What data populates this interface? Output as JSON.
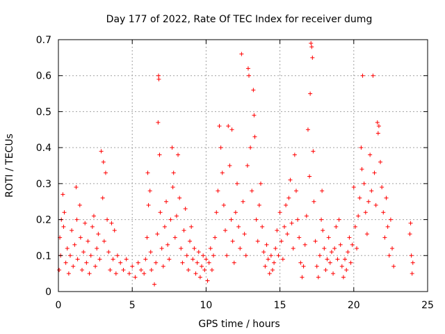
{
  "chart_data": {
    "type": "scatter",
    "title": "Day 177 of 2022, Rate Of TEC Index for receiver dumg",
    "xlabel": "GPS time / hours",
    "ylabel": "ROTI / TECUs",
    "xlim": [
      0,
      25
    ],
    "ylim": [
      0,
      0.7
    ],
    "xticks": [
      0,
      5,
      10,
      15,
      20,
      25
    ],
    "yticks": [
      0,
      0.1,
      0.2,
      0.3,
      0.4,
      0.5,
      0.6,
      0.7
    ],
    "xtick_labels": [
      "0",
      "5",
      "10",
      "15",
      "20",
      "25"
    ],
    "ytick_labels": [
      "0",
      "0.1",
      "0.2",
      "0.3",
      "0.4",
      "0.5",
      "0.6",
      "0.7"
    ],
    "grid": true,
    "marker": "+",
    "color": "#ff0000",
    "series": [
      {
        "points": [
          [
            0.05,
            0.06
          ],
          [
            0.1,
            0.15
          ],
          [
            0.15,
            0.1
          ],
          [
            0.2,
            0.2
          ],
          [
            0.3,
            0.27
          ],
          [
            0.35,
            0.18
          ],
          [
            0.4,
            0.22
          ],
          [
            0.5,
            0.08
          ],
          [
            0.6,
            0.12
          ],
          [
            0.7,
            0.05
          ],
          [
            0.8,
            0.1
          ],
          [
            0.9,
            0.17
          ],
          [
            1.0,
            0.07
          ],
          [
            1.1,
            0.13
          ],
          [
            1.2,
            0.29
          ],
          [
            1.25,
            0.2
          ],
          [
            1.3,
            0.09
          ],
          [
            1.45,
            0.24
          ],
          [
            1.5,
            0.15
          ],
          [
            1.6,
            0.06
          ],
          [
            1.7,
            0.11
          ],
          [
            1.8,
            0.19
          ],
          [
            1.9,
            0.08
          ],
          [
            2.0,
            0.14
          ],
          [
            2.1,
            0.05
          ],
          [
            2.2,
            0.1
          ],
          [
            2.3,
            0.18
          ],
          [
            2.4,
            0.21
          ],
          [
            2.5,
            0.07
          ],
          [
            2.6,
            0.12
          ],
          [
            2.7,
            0.16
          ],
          [
            2.8,
            0.09
          ],
          [
            2.9,
            0.39
          ],
          [
            3.0,
            0.26
          ],
          [
            3.05,
            0.36
          ],
          [
            3.1,
            0.14
          ],
          [
            3.2,
            0.33
          ],
          [
            3.3,
            0.2
          ],
          [
            3.4,
            0.11
          ],
          [
            3.5,
            0.06
          ],
          [
            3.6,
            0.19
          ],
          [
            3.7,
            0.09
          ],
          [
            3.8,
            0.17
          ],
          [
            3.9,
            0.05
          ],
          [
            4.0,
            0.1
          ],
          [
            4.2,
            0.08
          ],
          [
            4.4,
            0.06
          ],
          [
            4.6,
            0.09
          ],
          [
            4.8,
            0.05
          ],
          [
            5.0,
            0.07
          ],
          [
            5.2,
            0.04
          ],
          [
            5.4,
            0.08
          ],
          [
            5.6,
            0.06
          ],
          [
            5.8,
            0.05
          ],
          [
            5.9,
            0.09
          ],
          [
            6.0,
            0.15
          ],
          [
            6.05,
            0.33
          ],
          [
            6.1,
            0.24
          ],
          [
            6.2,
            0.28
          ],
          [
            6.25,
            0.11
          ],
          [
            6.3,
            0.06
          ],
          [
            6.5,
            0.02
          ],
          [
            6.6,
            0.08
          ],
          [
            6.7,
            0.16
          ],
          [
            6.75,
            0.47
          ],
          [
            6.78,
            0.6
          ],
          [
            6.8,
            0.59
          ],
          [
            6.85,
            0.38
          ],
          [
            6.9,
            0.22
          ],
          [
            7.0,
            0.12
          ],
          [
            7.1,
            0.07
          ],
          [
            7.2,
            0.18
          ],
          [
            7.3,
            0.25
          ],
          [
            7.4,
            0.13
          ],
          [
            7.5,
            0.09
          ],
          [
            7.6,
            0.2
          ],
          [
            7.7,
            0.4
          ],
          [
            7.75,
            0.29
          ],
          [
            7.8,
            0.33
          ],
          [
            7.9,
            0.15
          ],
          [
            8.0,
            0.21
          ],
          [
            8.1,
            0.38
          ],
          [
            8.2,
            0.26
          ],
          [
            8.3,
            0.12
          ],
          [
            8.4,
            0.08
          ],
          [
            8.5,
            0.17
          ],
          [
            8.6,
            0.23
          ],
          [
            8.7,
            0.1
          ],
          [
            8.8,
            0.06
          ],
          [
            8.9,
            0.14
          ],
          [
            9.0,
            0.18
          ],
          [
            9.1,
            0.09
          ],
          [
            9.2,
            0.12
          ],
          [
            9.3,
            0.05
          ],
          [
            9.4,
            0.08
          ],
          [
            9.5,
            0.11
          ],
          [
            9.6,
            0.04
          ],
          [
            9.7,
            0.07
          ],
          [
            9.8,
            0.1
          ],
          [
            9.9,
            0.06
          ],
          [
            10.0,
            0.09
          ],
          [
            10.1,
            0.03
          ],
          [
            10.2,
            0.08
          ],
          [
            10.3,
            0.12
          ],
          [
            10.4,
            0.06
          ],
          [
            10.5,
            0.1
          ],
          [
            10.6,
            0.15
          ],
          [
            10.7,
            0.22
          ],
          [
            10.8,
            0.28
          ],
          [
            10.9,
            0.46
          ],
          [
            11.0,
            0.4
          ],
          [
            11.1,
            0.33
          ],
          [
            11.2,
            0.24
          ],
          [
            11.3,
            0.17
          ],
          [
            11.4,
            0.1
          ],
          [
            11.5,
            0.46
          ],
          [
            11.6,
            0.35
          ],
          [
            11.7,
            0.2
          ],
          [
            11.75,
            0.45
          ],
          [
            11.8,
            0.14
          ],
          [
            11.9,
            0.08
          ],
          [
            12.0,
            0.22
          ],
          [
            12.1,
            0.3
          ],
          [
            12.2,
            0.18
          ],
          [
            12.3,
            0.12
          ],
          [
            12.4,
            0.66
          ],
          [
            12.5,
            0.25
          ],
          [
            12.6,
            0.16
          ],
          [
            12.7,
            0.1
          ],
          [
            12.8,
            0.35
          ],
          [
            12.85,
            0.62
          ],
          [
            12.9,
            0.6
          ],
          [
            13.0,
            0.4
          ],
          [
            13.1,
            0.28
          ],
          [
            13.2,
            0.56
          ],
          [
            13.25,
            0.49
          ],
          [
            13.3,
            0.43
          ],
          [
            13.4,
            0.2
          ],
          [
            13.5,
            0.14
          ],
          [
            13.6,
            0.24
          ],
          [
            13.7,
            0.3
          ],
          [
            13.8,
            0.18
          ],
          [
            13.9,
            0.11
          ],
          [
            14.0,
            0.07
          ],
          [
            14.1,
            0.13
          ],
          [
            14.2,
            0.09
          ],
          [
            14.3,
            0.05
          ],
          [
            14.4,
            0.1
          ],
          [
            14.5,
            0.06
          ],
          [
            14.6,
            0.08
          ],
          [
            14.7,
            0.12
          ],
          [
            14.8,
            0.17
          ],
          [
            14.9,
            0.1
          ],
          [
            15.0,
            0.22
          ],
          [
            15.1,
            0.14
          ],
          [
            15.2,
            0.09
          ],
          [
            15.3,
            0.18
          ],
          [
            15.4,
            0.24
          ],
          [
            15.5,
            0.16
          ],
          [
            15.6,
            0.26
          ],
          [
            15.7,
            0.31
          ],
          [
            15.8,
            0.19
          ],
          [
            15.9,
            0.12
          ],
          [
            16.0,
            0.38
          ],
          [
            16.1,
            0.28
          ],
          [
            16.2,
            0.2
          ],
          [
            16.3,
            0.15
          ],
          [
            16.4,
            0.08
          ],
          [
            16.5,
            0.04
          ],
          [
            16.6,
            0.07
          ],
          [
            16.7,
            0.13
          ],
          [
            16.8,
            0.21
          ],
          [
            16.9,
            0.45
          ],
          [
            17.0,
            0.32
          ],
          [
            17.05,
            0.55
          ],
          [
            17.1,
            0.69
          ],
          [
            17.15,
            0.68
          ],
          [
            17.2,
            0.65
          ],
          [
            17.25,
            0.39
          ],
          [
            17.3,
            0.25
          ],
          [
            17.4,
            0.14
          ],
          [
            17.5,
            0.07
          ],
          [
            17.6,
            0.04
          ],
          [
            17.7,
            0.1
          ],
          [
            17.8,
            0.2
          ],
          [
            17.85,
            0.28
          ],
          [
            17.9,
            0.17
          ],
          [
            18.0,
            0.12
          ],
          [
            18.1,
            0.06
          ],
          [
            18.2,
            0.09
          ],
          [
            18.3,
            0.15
          ],
          [
            18.4,
            0.08
          ],
          [
            18.5,
            0.11
          ],
          [
            18.6,
            0.05
          ],
          [
            18.7,
            0.12
          ],
          [
            18.8,
            0.18
          ],
          [
            18.9,
            0.09
          ],
          [
            19.0,
            0.2
          ],
          [
            19.1,
            0.13
          ],
          [
            19.2,
            0.07
          ],
          [
            19.3,
            0.04
          ],
          [
            19.4,
            0.09
          ],
          [
            19.5,
            0.06
          ],
          [
            19.6,
            0.11
          ],
          [
            19.7,
            0.15
          ],
          [
            19.8,
            0.08
          ],
          [
            19.9,
            0.13
          ],
          [
            20.0,
            0.29
          ],
          [
            20.1,
            0.18
          ],
          [
            20.2,
            0.12
          ],
          [
            20.3,
            0.21
          ],
          [
            20.4,
            0.26
          ],
          [
            20.5,
            0.4
          ],
          [
            20.55,
            0.34
          ],
          [
            20.6,
            0.6
          ],
          [
            20.7,
            0.3
          ],
          [
            20.8,
            0.22
          ],
          [
            20.9,
            0.16
          ],
          [
            21.0,
            0.25
          ],
          [
            21.1,
            0.38
          ],
          [
            21.2,
            0.28
          ],
          [
            21.3,
            0.6
          ],
          [
            21.4,
            0.33
          ],
          [
            21.5,
            0.24
          ],
          [
            21.6,
            0.47
          ],
          [
            21.65,
            0.44
          ],
          [
            21.7,
            0.46
          ],
          [
            21.8,
            0.36
          ],
          [
            21.9,
            0.29
          ],
          [
            22.0,
            0.22
          ],
          [
            22.1,
            0.15
          ],
          [
            22.2,
            0.26
          ],
          [
            22.3,
            0.18
          ],
          [
            22.4,
            0.1
          ],
          [
            22.5,
            0.2
          ],
          [
            22.6,
            0.12
          ],
          [
            22.7,
            0.07
          ],
          [
            23.8,
            0.16
          ],
          [
            23.85,
            0.19
          ],
          [
            23.9,
            0.1
          ],
          [
            23.95,
            0.05
          ],
          [
            24.0,
            0.08
          ]
        ]
      }
    ]
  }
}
